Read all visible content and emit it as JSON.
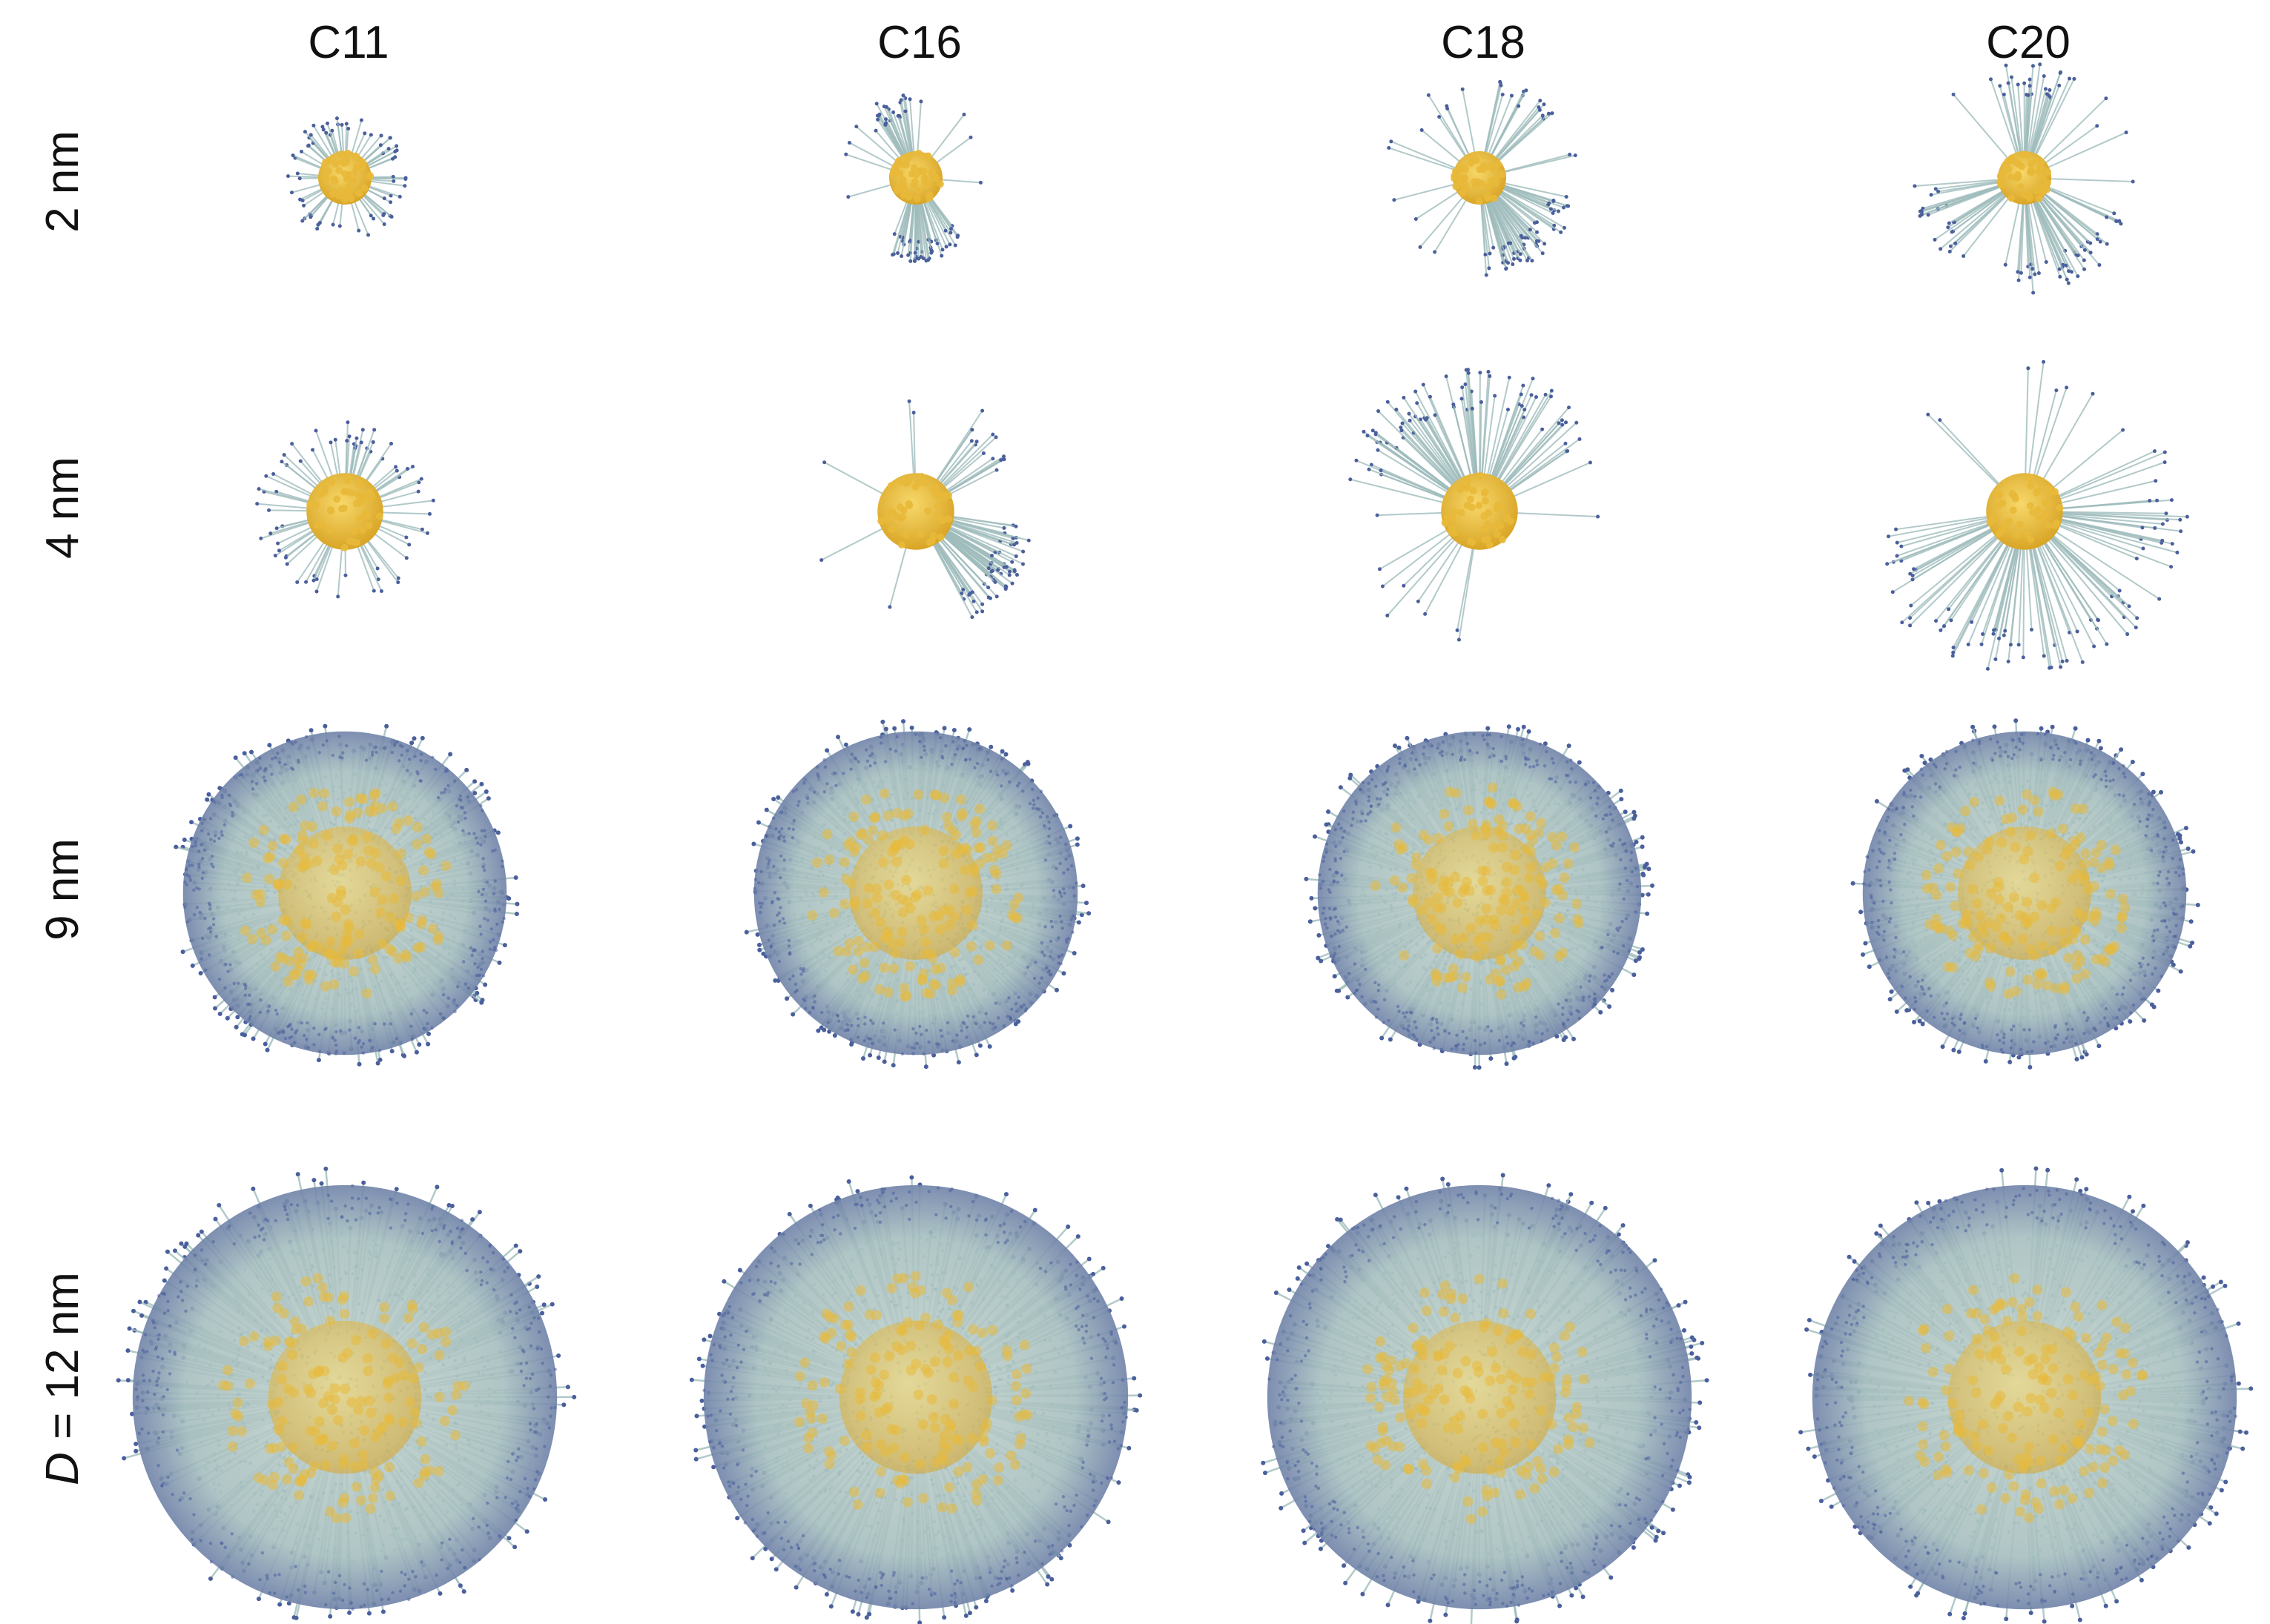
{
  "columns": [
    "C11",
    "C16",
    "C18",
    "C20"
  ],
  "rows": [
    {
      "size": "2 nm"
    },
    {
      "size": "4 nm"
    },
    {
      "size": "9 nm"
    },
    {
      "prefix": "D",
      "size": " = 12 nm"
    }
  ],
  "colors": {
    "core": "#e8b93a",
    "core_highlight": "#f7d86a",
    "ligand": "#9fbcbc",
    "ligand_end": "#4a5f9c",
    "background": "#ffffff"
  }
}
